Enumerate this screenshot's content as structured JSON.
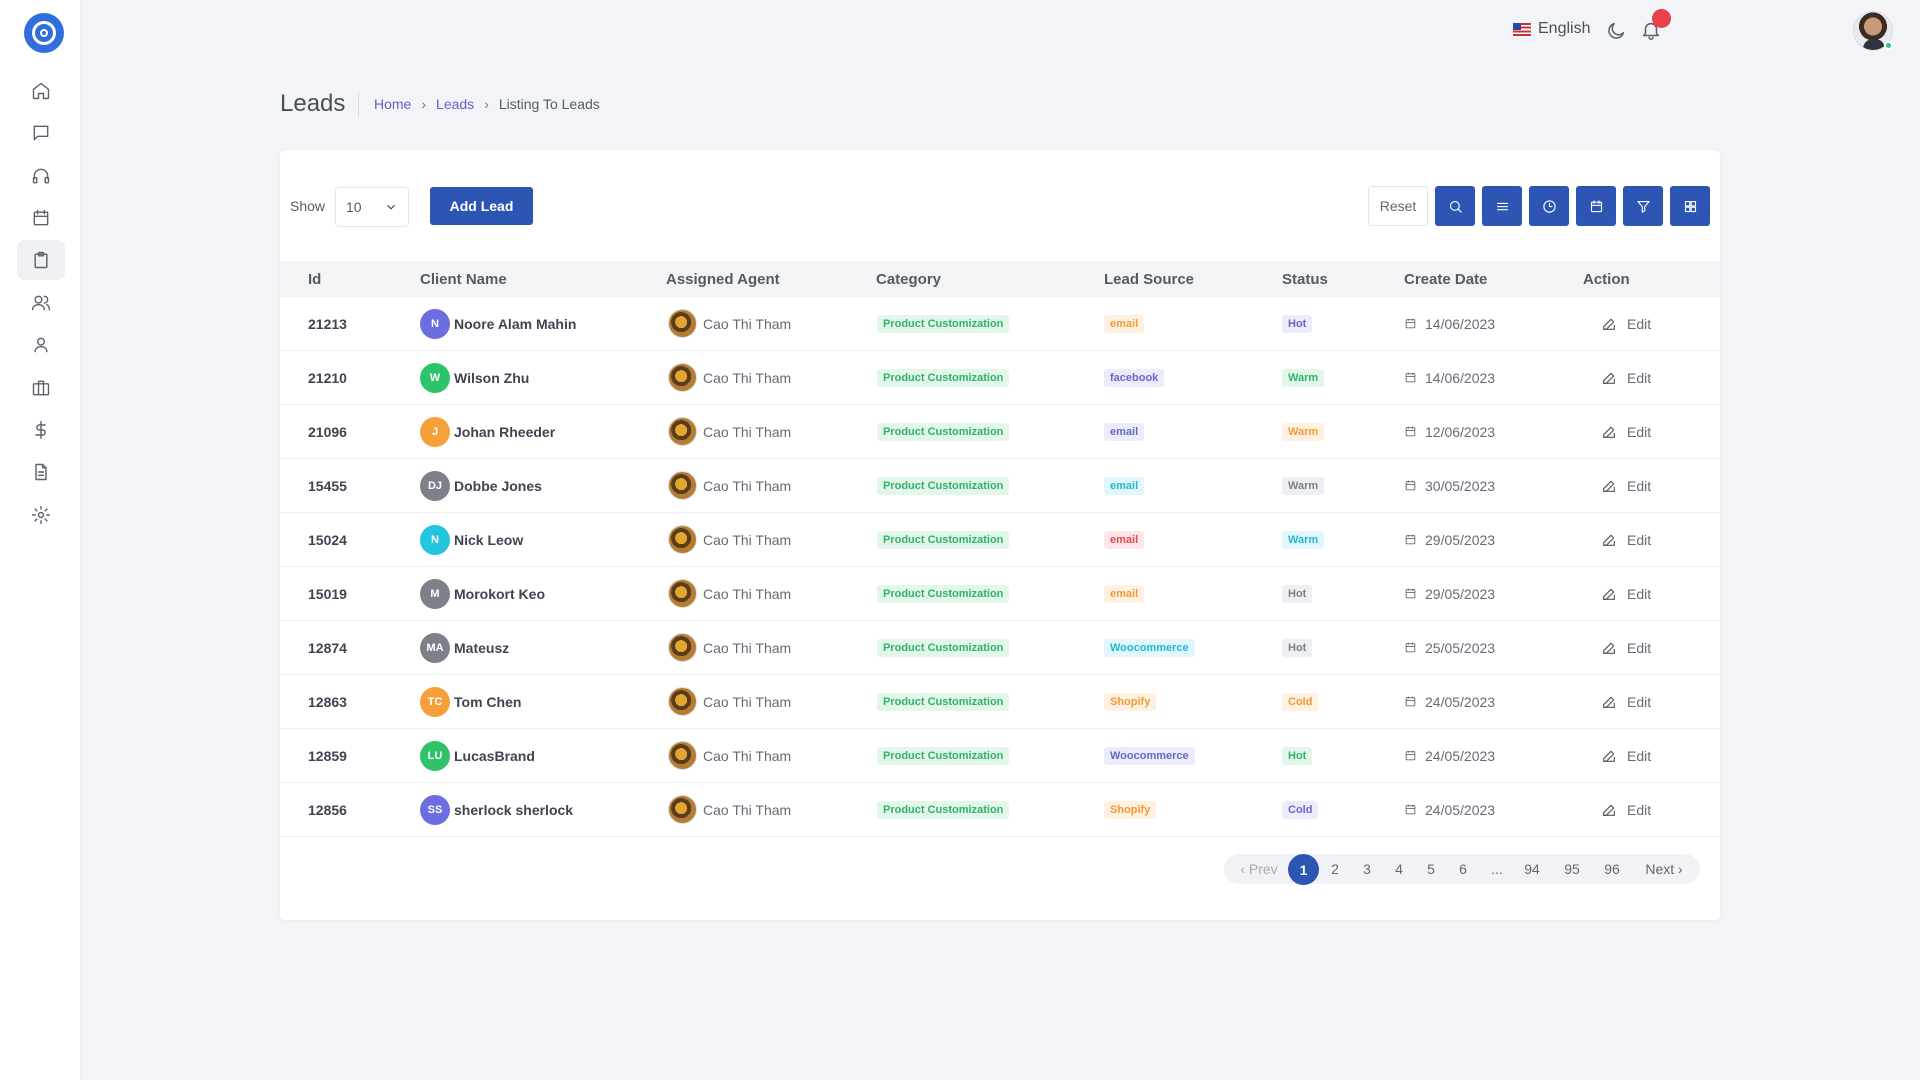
{
  "topbar": {
    "language": "English"
  },
  "page": {
    "title": "Leads",
    "breadcrumb": [
      "Home",
      "Leads",
      "Listing To Leads"
    ],
    "breadcrumb_sep": "›"
  },
  "toolbar": {
    "show_label": "Show",
    "show_value": "10",
    "add_label": "Add Lead",
    "reset_label": "Reset"
  },
  "table": {
    "headers": [
      "Id",
      "Client Name",
      "Assigned Agent",
      "Category",
      "Lead Source",
      "Status",
      "Create Date",
      "Action"
    ],
    "rows": [
      {
        "id": "21213",
        "initials": "N",
        "avatar_color": "#6b6de0",
        "client": "Noore Alam Mahin",
        "agent": "Cao Thi Tham",
        "category": "Product Customization",
        "source": "email",
        "source_style": "orange",
        "status": "Hot",
        "status_style": "purple",
        "date": "14/06/2023",
        "action": "Edit"
      },
      {
        "id": "21210",
        "initials": "W",
        "avatar_color": "#2ec26b",
        "client": "Wilson Zhu",
        "agent": "Cao Thi Tham",
        "category": "Product Customization",
        "source": "facebook",
        "source_style": "purple",
        "status": "Warm",
        "status_style": "green",
        "date": "14/06/2023",
        "action": "Edit"
      },
      {
        "id": "21096",
        "initials": "J",
        "avatar_color": "#f5a03a",
        "client": "Johan Rheeder",
        "agent": "Cao Thi Tham",
        "category": "Product Customization",
        "source": "email",
        "source_style": "purple",
        "status": "Warm",
        "status_style": "orange",
        "date": "12/06/2023",
        "action": "Edit"
      },
      {
        "id": "15455",
        "initials": "DJ",
        "avatar_color": "#7d8089",
        "client": "Dobbe Jones",
        "agent": "Cao Thi Tham",
        "category": "Product Customization",
        "source": "email",
        "source_style": "cyan",
        "status": "Warm",
        "status_style": "gray",
        "date": "30/05/2023",
        "action": "Edit"
      },
      {
        "id": "15024",
        "initials": "N",
        "avatar_color": "#22c5dd",
        "client": "Nick Leow",
        "agent": "Cao Thi Tham",
        "category": "Product Customization",
        "source": "email",
        "source_style": "red",
        "status": "Warm",
        "status_style": "cyan",
        "date": "29/05/2023",
        "action": "Edit"
      },
      {
        "id": "15019",
        "initials": "M",
        "avatar_color": "#7d8089",
        "client": "Morokort Keo",
        "agent": "Cao Thi Tham",
        "category": "Product Customization",
        "source": "email",
        "source_style": "orange",
        "status": "Hot",
        "status_style": "gray",
        "date": "29/05/2023",
        "action": "Edit"
      },
      {
        "id": "12874",
        "initials": "MA",
        "avatar_color": "#7d8089",
        "client": "Mateusz",
        "agent": "Cao Thi Tham",
        "category": "Product Customization",
        "source": "Woocommerce",
        "source_style": "cyan",
        "status": "Hot",
        "status_style": "gray",
        "date": "25/05/2023",
        "action": "Edit"
      },
      {
        "id": "12863",
        "initials": "TC",
        "avatar_color": "#f5a03a",
        "client": "Tom Chen",
        "agent": "Cao Thi Tham",
        "category": "Product Customization",
        "source": "Shopify",
        "source_style": "orange",
        "status": "Cold",
        "status_style": "orange",
        "date": "24/05/2023",
        "action": "Edit"
      },
      {
        "id": "12859",
        "initials": "LU",
        "avatar_color": "#2ec26b",
        "client": "LucasBrand",
        "agent": "Cao Thi Tham",
        "category": "Product Customization",
        "source": "Woocommerce",
        "source_style": "purple",
        "status": "Hot",
        "status_style": "green",
        "date": "24/05/2023",
        "action": "Edit"
      },
      {
        "id": "12856",
        "initials": "SS",
        "avatar_color": "#6b6de0",
        "client": "sherlock sherlock",
        "agent": "Cao Thi Tham",
        "category": "Product Customization",
        "source": "Shopify",
        "source_style": "orange",
        "status": "Cold",
        "status_style": "purple",
        "date": "24/05/2023",
        "action": "Edit"
      }
    ]
  },
  "pagination": {
    "prev": "‹ Prev",
    "pages": [
      "1",
      "2",
      "3",
      "4",
      "5",
      "6",
      "...",
      "94",
      "95",
      "96"
    ],
    "next": "Next ›",
    "current": "1"
  },
  "badge_styles": {
    "green": {
      "bg": "#e3f6ea",
      "fg": "#2fb26a"
    },
    "orange": {
      "bg": "#fff1e2",
      "fg": "#f29a35"
    },
    "purple": {
      "bg": "#ebebfa",
      "fg": "#6668c8"
    },
    "cyan": {
      "bg": "#e1f7fb",
      "fg": "#22b8d4"
    },
    "red": {
      "bg": "#fde6e7",
      "fg": "#e5484d"
    },
    "gray": {
      "bg": "#eeeff2",
      "fg": "#7a7f89"
    }
  },
  "colors": {
    "primary": "#2d56b4",
    "link": "#5a64c8",
    "notification": "#e8414a"
  }
}
